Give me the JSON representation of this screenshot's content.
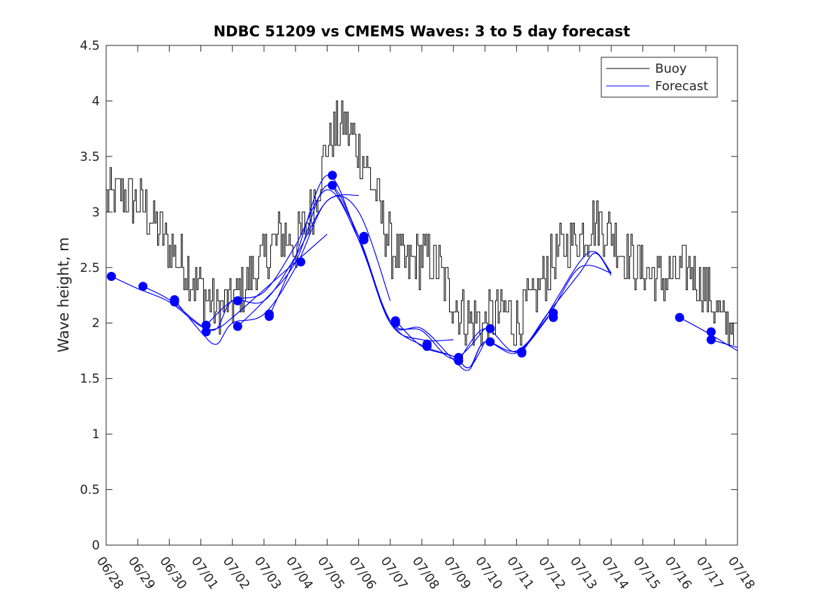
{
  "chart_data": {
    "type": "line",
    "title": "NDBC 51209 vs CMEMS Waves: 3 to 5 day forecast",
    "xlabel": "",
    "ylabel": "Wave height, m",
    "xlim": [
      "06/28",
      "07/18"
    ],
    "ylim": [
      0,
      4.5
    ],
    "x_tick_labels": [
      "06/28",
      "06/29",
      "06/30",
      "07/01",
      "07/02",
      "07/03",
      "07/04",
      "07/05",
      "07/06",
      "07/07",
      "07/08",
      "07/09",
      "07/10",
      "07/11",
      "07/12",
      "07/13",
      "07/14",
      "07/15",
      "07/16",
      "07/17",
      "07/18"
    ],
    "y_tick_labels": [
      "0",
      "0.5",
      "1",
      "1.5",
      "2",
      "2.5",
      "3",
      "3.5",
      "4",
      "4.5"
    ],
    "grid": false,
    "legend": {
      "position": "top-right",
      "entries": [
        "Buoy",
        "Forecast"
      ]
    },
    "colors": {
      "buoy": "#000000",
      "forecast": "#0000ff"
    },
    "buoy": {
      "name": "Buoy",
      "x": [
        "06/28",
        "06/28 12:00",
        "06/29",
        "06/29 12:00",
        "06/30",
        "06/30 12:00",
        "07/01",
        "07/01 12:00",
        "07/02",
        "07/02 12:00",
        "07/03",
        "07/03 12:00",
        "07/04",
        "07/04 12:00",
        "07/05",
        "07/05 12:00",
        "07/06",
        "07/06 12:00",
        "07/07",
        "07/07 12:00",
        "07/08",
        "07/08 12:00",
        "07/09",
        "07/09 12:00",
        "07/10",
        "07/10 12:00",
        "07/11",
        "07/11 12:00",
        "07/12",
        "07/12 12:00",
        "07/13",
        "07/13 12:00",
        "07/14",
        "07/14 12:00",
        "07/15",
        "07/15 12:00",
        "07/16",
        "07/16 12:00",
        "07/17",
        "07/17 12:00"
      ],
      "y": [
        3.1,
        3.2,
        3.1,
        2.9,
        2.7,
        2.5,
        2.3,
        2.1,
        2.2,
        2.4,
        2.6,
        2.8,
        2.7,
        3.0,
        3.6,
        3.8,
        3.6,
        3.2,
        2.7,
        2.5,
        2.6,
        2.5,
        2.2,
        2.0,
        2.0,
        2.1,
        2.0,
        2.2,
        2.5,
        2.7,
        2.8,
        2.9,
        2.8,
        2.6,
        2.5,
        2.4,
        2.4,
        2.5,
        2.3,
        2.0
      ],
      "range": [
        1.8,
        4.2
      ]
    },
    "forecast_series": [
      {
        "name": "Forecast",
        "x": [
          "06/28 04:00",
          "06/29",
          "06/30",
          "07/01",
          "07/01 12:00",
          "07/02",
          "07/03",
          "07/04",
          "07/05"
        ],
        "y": [
          2.42,
          2.31,
          2.19,
          1.97,
          1.95,
          2.05,
          2.3,
          2.55,
          2.8
        ]
      },
      {
        "name": "Forecast",
        "x": [
          "06/29 04:00",
          "06/30",
          "07/01",
          "07/01 12:00",
          "07/02",
          "07/03",
          "07/04",
          "07/05",
          "07/06"
        ],
        "y": [
          2.33,
          2.21,
          1.98,
          1.95,
          2.2,
          2.2,
          2.6,
          3.1,
          3.15
        ]
      },
      {
        "name": "Forecast",
        "x": [
          "06/30 04:00",
          "07/01",
          "07/01 12:00",
          "07/02",
          "07/03",
          "07/04",
          "07/05",
          "07/06",
          "07/07"
        ],
        "y": [
          2.21,
          1.92,
          1.81,
          2.0,
          2.08,
          2.5,
          3.1,
          3.0,
          2.2
        ]
      },
      {
        "name": "Forecast",
        "x": [
          "07/01 04:00",
          "07/02",
          "07/03",
          "07/04",
          "07/05",
          "07/06",
          "07/07",
          "07/08",
          "07/09"
        ],
        "y": [
          1.98,
          2.2,
          2.28,
          2.7,
          3.2,
          2.75,
          2.0,
          1.85,
          1.85
        ]
      },
      {
        "name": "Forecast",
        "x": [
          "07/02 04:00",
          "07/03",
          "07/04",
          "07/05",
          "07/06",
          "07/07",
          "07/08",
          "07/09",
          "07/10"
        ],
        "y": [
          1.97,
          2.2,
          2.55,
          3.24,
          2.78,
          2.02,
          1.93,
          1.68,
          1.95
        ]
      },
      {
        "name": "Forecast",
        "x": [
          "07/03 04:00",
          "07/04",
          "07/05",
          "07/06",
          "07/07",
          "07/08",
          "07/09",
          "07/09 12:00",
          "07/10"
        ],
        "y": [
          2.06,
          2.6,
          3.33,
          2.75,
          2.02,
          1.8,
          1.7,
          1.6,
          1.83
        ]
      },
      {
        "name": "Forecast",
        "x": [
          "07/05 04:00",
          "07/06",
          "07/07",
          "07/08",
          "07/09",
          "07/09 12:00",
          "07/10",
          "07/11",
          "07/12"
        ],
        "y": [
          3.24,
          2.78,
          2.0,
          1.95,
          1.67,
          1.58,
          1.83,
          1.73,
          2.05
        ]
      },
      {
        "name": "Forecast",
        "x": [
          "07/07 04:00",
          "07/08",
          "07/09",
          "07/09 12:00",
          "07/10",
          "07/11",
          "07/12",
          "07/13",
          "07/14"
        ],
        "y": [
          2.02,
          1.79,
          1.7,
          1.6,
          1.83,
          1.75,
          2.06,
          2.5,
          2.45
        ]
      },
      {
        "name": "Forecast",
        "x": [
          "07/09 04:00",
          "07/10",
          "07/11",
          "07/12",
          "07/13",
          "07/13 12:00",
          "07/14"
        ],
        "y": [
          1.66,
          1.95,
          1.74,
          2.09,
          2.45,
          2.63,
          2.43
        ]
      },
      {
        "name": "Forecast",
        "x": [
          "07/11 04:00",
          "07/12",
          "07/13",
          "07/13 12:00",
          "07/14"
        ],
        "y": [
          1.73,
          2.09,
          2.55,
          2.64,
          2.45
        ]
      },
      {
        "name": "Forecast",
        "x": [
          "07/16 04:00",
          "07/17",
          "07/18"
        ],
        "y": [
          2.05,
          1.92,
          1.75
        ]
      },
      {
        "name": "Forecast",
        "x": [
          "07/17 04:00",
          "07/18"
        ],
        "y": [
          1.85,
          1.78
        ]
      }
    ],
    "forecast_markers": {
      "x": [
        "06/28 04:00",
        "06/29 04:00",
        "06/30 04:00",
        "06/30 04:00",
        "07/01 04:00",
        "07/01 04:00",
        "07/02 04:00",
        "07/02 04:00",
        "07/03 04:00",
        "07/03 04:00",
        "07/04 04:00",
        "07/05 04:00",
        "07/05 04:00",
        "07/06 04:00",
        "07/06 04:00",
        "07/07 04:00",
        "07/07 04:00",
        "07/08 04:00",
        "07/08 04:00",
        "07/09 04:00",
        "07/09 04:00",
        "07/10 04:00",
        "07/10 04:00",
        "07/11 04:00",
        "07/11 04:00",
        "07/12 04:00",
        "07/12 04:00",
        "07/16 04:00",
        "07/17 04:00",
        "07/17 04:00"
      ],
      "y": [
        2.42,
        2.33,
        2.21,
        2.19,
        1.98,
        1.92,
        2.2,
        1.97,
        2.08,
        2.06,
        2.55,
        3.33,
        3.24,
        2.78,
        2.75,
        2.02,
        2.0,
        1.81,
        1.79,
        1.69,
        1.66,
        1.95,
        1.83,
        1.74,
        1.73,
        2.09,
        2.05,
        2.05,
        1.92,
        1.85
      ]
    }
  }
}
